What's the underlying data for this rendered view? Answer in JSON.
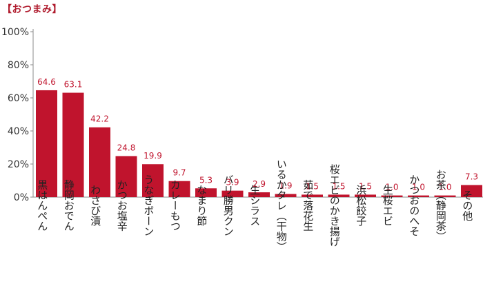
{
  "title": "【おつまみ】",
  "chart_data": {
    "type": "bar",
    "categories": [
      "黒はんぺん",
      "静岡おでん",
      "わさび漬",
      "かつお塩辛",
      "うなぎボーン",
      "カレーもつ",
      "なまり節",
      "バリ勝男クン",
      "生シラス",
      "いるかタレ（干物）",
      "茹で落花生",
      "桜エビのかき揚げ",
      "浜松餃子",
      "生桜エビ",
      "かつおのへそ",
      "お茶（静岡茶）",
      "その他"
    ],
    "values": [
      64.6,
      63.1,
      42.2,
      24.8,
      19.9,
      9.7,
      5.3,
      3.9,
      2.9,
      1.9,
      1.5,
      1.5,
      1.5,
      1.0,
      1.0,
      1.0,
      7.3
    ],
    "value_labels": [
      "64.6",
      "63.1",
      "42.2",
      "24.8",
      "19.9",
      "9.7",
      "5.3",
      "3.9",
      "2.9",
      "1.9",
      "1.5",
      "1.5",
      "1.5",
      "1.0",
      "1.0",
      "1.0",
      "7.3"
    ],
    "y_ticks": [
      0,
      20,
      40,
      60,
      80,
      100
    ],
    "y_tick_labels": [
      "0%",
      "20%",
      "40%",
      "60%",
      "80%",
      "100%"
    ],
    "ylim": [
      0,
      100
    ],
    "grid": false,
    "legend": "none",
    "bar_color": "#c0142d",
    "value_label_color": "#c0142d",
    "title_color": "#b01c2e"
  }
}
